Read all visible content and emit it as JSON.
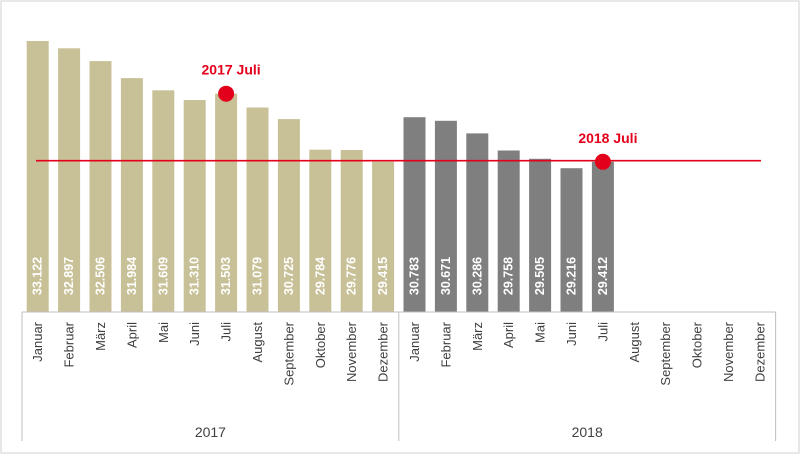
{
  "chart_data": {
    "type": "bar",
    "categories": [
      "Januar",
      "Februar",
      "März",
      "April",
      "Mai",
      "Juni",
      "Juli",
      "August",
      "September",
      "Oktober",
      "November",
      "Dezember",
      "Januar",
      "Februar",
      "März",
      "April",
      "Mai",
      "Juni",
      "Juli",
      "August",
      "September",
      "Oktober",
      "November",
      "Dezember"
    ],
    "groups": [
      {
        "label": "2017",
        "start": 0,
        "count": 12
      },
      {
        "label": "2018",
        "start": 12,
        "count": 12
      }
    ],
    "values": [
      33122,
      32897,
      32506,
      31984,
      31609,
      31310,
      31503,
      31079,
      30725,
      29784,
      29776,
      29415,
      30783,
      30671,
      30286,
      29758,
      29505,
      29216,
      29412,
      null,
      null,
      null,
      null,
      null
    ],
    "value_labels": [
      "33.122",
      "32.897",
      "32.506",
      "31.984",
      "31.609",
      "31.310",
      "31.503",
      "31.079",
      "30.725",
      "29.784",
      "29.776",
      "29.415",
      "30.783",
      "30.671",
      "30.286",
      "29.758",
      "29.505",
      "29.216",
      "29.412",
      "",
      "",
      "",
      "",
      ""
    ],
    "bar_colors": {
      "2017": "#c8c197",
      "2018": "#7f7f7f"
    },
    "reference_line": {
      "value": 29415,
      "color": "#e3001b"
    },
    "markers": [
      {
        "index": 6,
        "value": 31503,
        "label": "2017 Juli",
        "color": "#e3001b"
      },
      {
        "index": 18,
        "value": 29412,
        "label": "2018 Juli",
        "color": "#e3001b"
      }
    ],
    "ylim": [
      24800,
      33600
    ],
    "grid": false,
    "legend": "none"
  }
}
